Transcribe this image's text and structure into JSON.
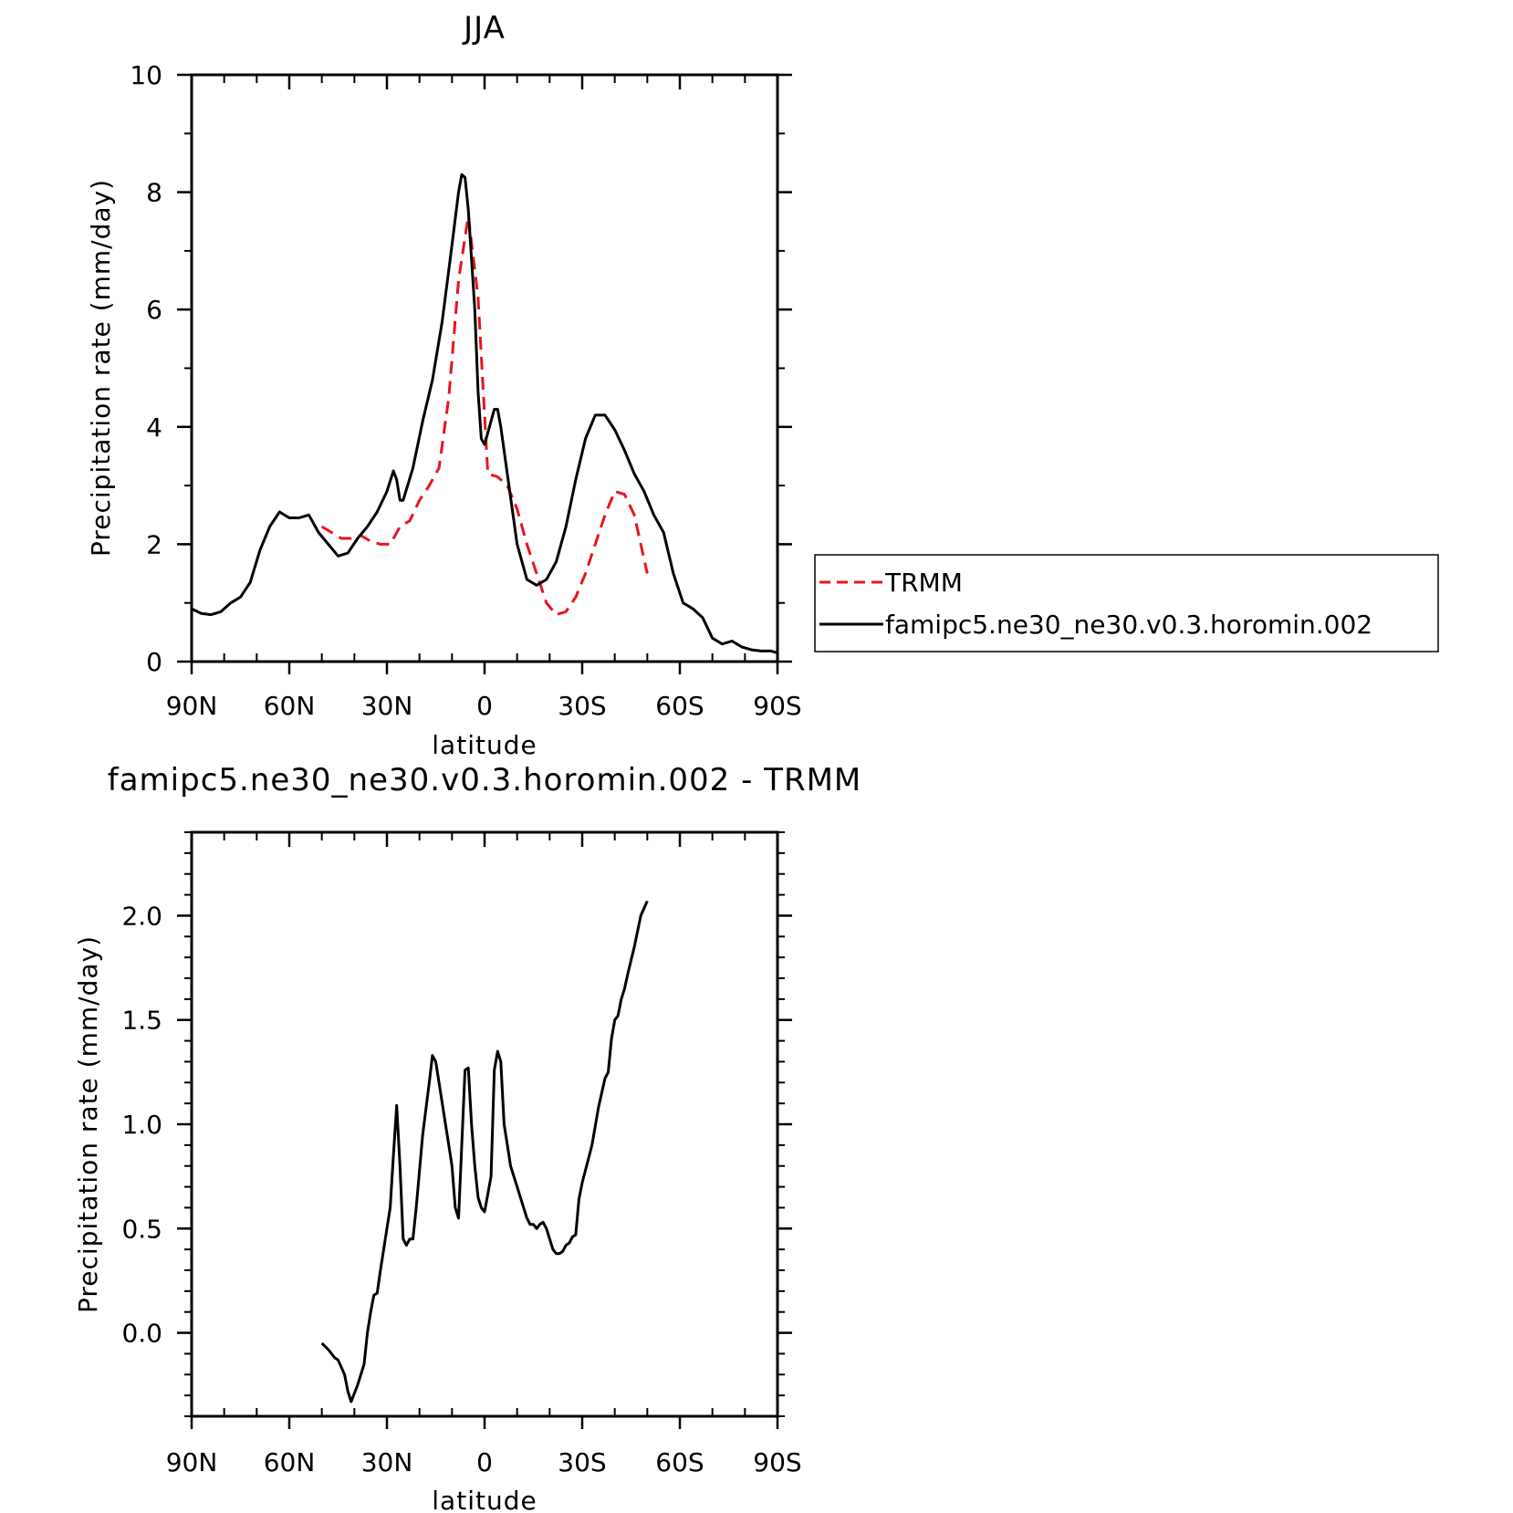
{
  "chart_data": [
    {
      "type": "line",
      "title": "JJA",
      "xlabel": "latitude",
      "ylabel": "Precipitation rate (mm/day)",
      "xlim": [
        90,
        -90
      ],
      "ylim": [
        0,
        10
      ],
      "x_ticks": [
        90,
        60,
        30,
        0,
        -30,
        -60,
        -90
      ],
      "x_tick_labels": [
        "90N",
        "60N",
        "30N",
        "0",
        "30S",
        "60S",
        "90S"
      ],
      "y_ticks": [
        0,
        2,
        4,
        6,
        8,
        10
      ],
      "y_tick_labels": [
        "0",
        "2",
        "4",
        "6",
        "8",
        "10"
      ],
      "grid": false,
      "legend_position": "right",
      "series": [
        {
          "name": "TRMM",
          "color": "#e8141e",
          "dash": "dashed",
          "x": [
            50,
            47,
            44,
            41,
            38,
            35,
            32,
            29,
            26,
            23,
            20,
            17,
            14,
            11,
            8,
            5,
            2,
            -1,
            -4,
            -7,
            -10,
            -13,
            -16,
            -19,
            -22,
            -25,
            -28,
            -31,
            -34,
            -37,
            -40,
            -43,
            -46,
            -50
          ],
          "y": [
            2.3,
            2.2,
            2.1,
            2.1,
            2.15,
            2.05,
            2.0,
            2.0,
            2.3,
            2.4,
            2.75,
            3.0,
            3.3,
            4.5,
            6.5,
            7.6,
            6.2,
            3.2,
            3.15,
            3.0,
            2.6,
            2.0,
            1.5,
            1.0,
            0.8,
            0.85,
            1.1,
            1.5,
            2.0,
            2.5,
            2.9,
            2.85,
            2.5,
            1.5
          ]
        },
        {
          "name": "famipc5.ne30_ne30.v0.3.horomin.002",
          "color": "#000000",
          "dash": "solid",
          "x": [
            90,
            87,
            84,
            81,
            78,
            75,
            72,
            69,
            66,
            63,
            60,
            57,
            54,
            51,
            48,
            45,
            42,
            39,
            36,
            33,
            30,
            28,
            27,
            26,
            25,
            22,
            19,
            16,
            13,
            10,
            8,
            7,
            6,
            5,
            3,
            2,
            1,
            0,
            -1,
            -3,
            -4,
            -5,
            -8,
            -10,
            -13,
            -16,
            -19,
            -22,
            -25,
            -28,
            -31,
            -34,
            -37,
            -40,
            -43,
            -46,
            -49,
            -52,
            -55,
            -58,
            -61,
            -64,
            -67,
            -70,
            -73,
            -76,
            -79,
            -82,
            -85,
            -88,
            -90
          ],
          "y": [
            0.9,
            0.82,
            0.8,
            0.85,
            1.0,
            1.1,
            1.35,
            1.9,
            2.3,
            2.55,
            2.45,
            2.45,
            2.5,
            2.2,
            2.0,
            1.8,
            1.85,
            2.1,
            2.3,
            2.55,
            2.9,
            3.25,
            3.1,
            2.75,
            2.75,
            3.3,
            4.1,
            4.8,
            5.8,
            7.1,
            8.0,
            8.3,
            8.25,
            7.7,
            6.0,
            4.6,
            3.8,
            3.7,
            3.9,
            4.3,
            4.3,
            4.0,
            2.8,
            2.0,
            1.4,
            1.3,
            1.4,
            1.7,
            2.3,
            3.1,
            3.8,
            4.2,
            4.2,
            3.95,
            3.6,
            3.2,
            2.9,
            2.5,
            2.2,
            1.5,
            1.0,
            0.9,
            0.75,
            0.4,
            0.3,
            0.35,
            0.25,
            0.2,
            0.18,
            0.18,
            0.15
          ]
        }
      ]
    },
    {
      "type": "line",
      "title": "famipc5.ne30_ne30.v0.3.horomin.002 - TRMM",
      "xlabel": "latitude",
      "ylabel": "Precipitation rate (mm/day)",
      "xlim": [
        90,
        -90
      ],
      "ylim": [
        -0.4,
        2.4
      ],
      "x_ticks": [
        90,
        60,
        30,
        0,
        -30,
        -60,
        -90
      ],
      "x_tick_labels": [
        "90N",
        "60N",
        "30N",
        "0",
        "30S",
        "60S",
        "90S"
      ],
      "y_ticks": [
        0.0,
        0.5,
        1.0,
        1.5,
        2.0
      ],
      "y_tick_labels": [
        "0.0",
        "0.5",
        "1.0",
        "1.5",
        "2.0"
      ],
      "grid": false,
      "series": [
        {
          "color": "#000000",
          "dash": "solid",
          "x": [
            50,
            48,
            46,
            45,
            43,
            42,
            41,
            39,
            37,
            36,
            35,
            34,
            33,
            32,
            30,
            29,
            28,
            27,
            26,
            25,
            24,
            23,
            22,
            21,
            19,
            17,
            16,
            15,
            14,
            12,
            11,
            10,
            9,
            8,
            6,
            5,
            4,
            3,
            2,
            1,
            0,
            -2,
            -3,
            -4,
            -5,
            -6,
            -7,
            -8,
            -10,
            -12,
            -13,
            -14,
            -15,
            -16,
            -17,
            -18,
            -19,
            -20,
            -21,
            -22,
            -23,
            -24,
            -25,
            -26,
            -27,
            -28,
            -29,
            -30,
            -31,
            -33,
            -35,
            -37,
            -38,
            -39,
            -40,
            -41,
            -42,
            -43,
            -44,
            -46,
            -48,
            -50
          ],
          "y": [
            -0.05,
            -0.08,
            -0.12,
            -0.13,
            -0.2,
            -0.28,
            -0.33,
            -0.25,
            -0.15,
            0.0,
            0.1,
            0.18,
            0.19,
            0.3,
            0.5,
            0.6,
            0.85,
            1.09,
            0.8,
            0.45,
            0.42,
            0.45,
            0.45,
            0.6,
            0.95,
            1.2,
            1.33,
            1.3,
            1.2,
            1.0,
            0.9,
            0.8,
            0.6,
            0.55,
            1.26,
            1.27,
            1.0,
            0.8,
            0.65,
            0.6,
            0.58,
            0.75,
            1.26,
            1.35,
            1.3,
            1.0,
            0.9,
            0.8,
            0.7,
            0.6,
            0.55,
            0.52,
            0.52,
            0.5,
            0.52,
            0.53,
            0.5,
            0.45,
            0.4,
            0.38,
            0.38,
            0.39,
            0.42,
            0.43,
            0.46,
            0.47,
            0.64,
            0.72,
            0.78,
            0.9,
            1.08,
            1.22,
            1.25,
            1.41,
            1.5,
            1.52,
            1.6,
            1.65,
            1.72,
            1.85,
            2.0,
            2.07
          ]
        }
      ]
    }
  ]
}
